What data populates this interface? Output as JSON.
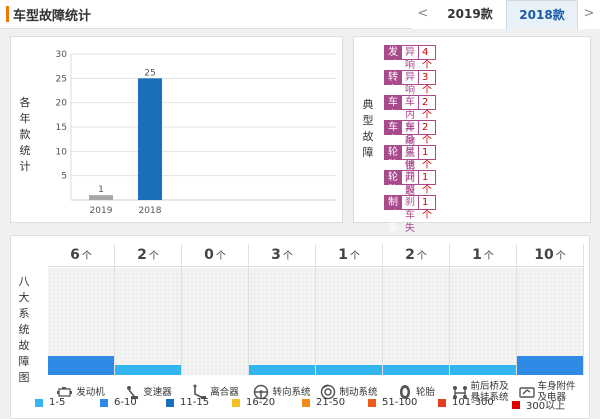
{
  "header": {
    "title": "车型故障统计",
    "prev_arrow": "<",
    "next_arrow": ">",
    "tabs": [
      {
        "label": "2019款",
        "active": false
      },
      {
        "label": "2018款",
        "active": true
      }
    ]
  },
  "chart_data": {
    "type": "bar",
    "ylabel": "各年款统计",
    "categories": [
      "2019",
      "2018"
    ],
    "values": [
      1,
      25
    ],
    "ylim": [
      0,
      30
    ],
    "yticks": [
      5,
      10,
      15,
      20,
      25,
      30
    ],
    "colors": [
      "#a8a8a8",
      "#1a6fb8"
    ],
    "grid": true
  },
  "typical_faults": {
    "label": "典型故障",
    "items": [
      {
        "part": "发动机",
        "type": "异响",
        "count": "4个"
      },
      {
        "part": "转向系统",
        "type": "异响",
        "count": "3个"
      },
      {
        "part": "车身附件及电器",
        "type": "车内异响",
        "count": "2个"
      },
      {
        "part": "车身附件及电器",
        "type": "车身生锈",
        "count": "2个"
      },
      {
        "part": "轮胎",
        "type": "其他问题",
        "count": "1个"
      },
      {
        "part": "轮胎",
        "type": "开裂",
        "count": "1个"
      },
      {
        "part": "制动系统",
        "type": "刹车失灵",
        "count": "1个"
      }
    ]
  },
  "systems": {
    "label": "八大系统故障图",
    "unit": "个",
    "items": [
      {
        "name": "发动机",
        "count": "6",
        "color": "#2f8ae6",
        "level": 0.18,
        "icon": "engine-icon"
      },
      {
        "name": "变速器",
        "count": "2",
        "color": "#33b5f0",
        "level": 0.09,
        "icon": "gear-shift-icon"
      },
      {
        "name": "离合器",
        "count": "0",
        "color": "",
        "level": 0,
        "icon": "clutch-pedal-icon"
      },
      {
        "name": "转向系统",
        "count": "3",
        "color": "#33b5f0",
        "level": 0.09,
        "icon": "steering-wheel-icon"
      },
      {
        "name": "制动系统",
        "count": "1",
        "color": "#33b5f0",
        "level": 0.09,
        "icon": "brake-disc-icon"
      },
      {
        "name": "轮胎",
        "count": "2",
        "color": "#33b5f0",
        "level": 0.09,
        "icon": "tire-icon"
      },
      {
        "name": "前后桥及悬挂系统",
        "count": "1",
        "color": "#33b5f0",
        "level": 0.09,
        "icon": "suspension-icon"
      },
      {
        "name": "车身附件及电器",
        "count": "10",
        "color": "#2f8ae6",
        "level": 0.18,
        "icon": "car-body-icon"
      }
    ]
  },
  "legend": [
    {
      "label": "1-5",
      "color": "#33b5f0"
    },
    {
      "label": "6-10",
      "color": "#2f8ae6"
    },
    {
      "label": "11-15",
      "color": "#1a6fb8"
    },
    {
      "label": "16-20",
      "color": "#f5c022"
    },
    {
      "label": "21-50",
      "color": "#f08a1c"
    },
    {
      "label": "51-100",
      "color": "#f05a1c"
    },
    {
      "label": "101-300",
      "color": "#e83a1c"
    },
    {
      "label": "300以上",
      "color": "#e00000"
    }
  ]
}
